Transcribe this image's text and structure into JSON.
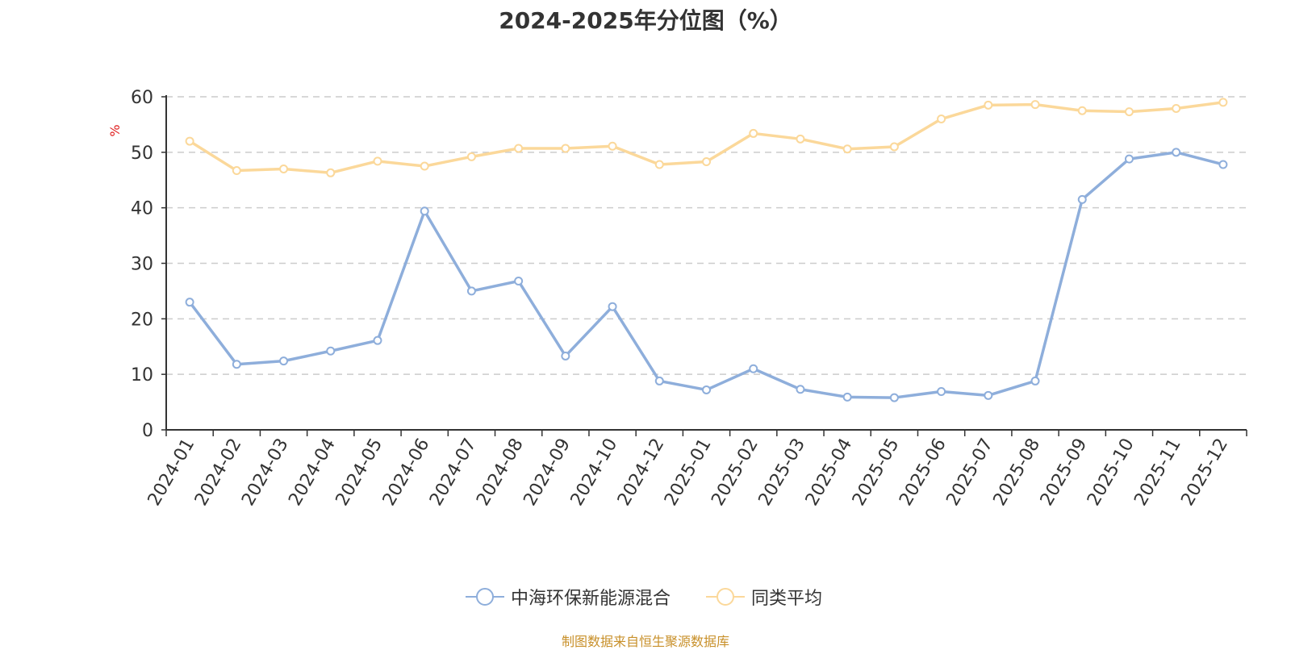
{
  "chart_data": {
    "type": "line",
    "title": "2024-2025年分位图（%）",
    "ylabel": "%",
    "xlabel": "",
    "ylim": [
      0,
      60
    ],
    "yticks": [
      0,
      10,
      20,
      30,
      40,
      50,
      60
    ],
    "grid": true,
    "legend_position": "bottom",
    "categories": [
      "2024-01",
      "2024-02",
      "2024-03",
      "2024-04",
      "2024-05",
      "2024-06",
      "2024-07",
      "2024-08",
      "2024-09",
      "2024-10",
      "2024-12",
      "2025-01",
      "2025-02",
      "2025-03",
      "2025-04",
      "2025-05",
      "2025-06",
      "2025-07",
      "2025-08",
      "2025-09",
      "2025-10",
      "2025-11",
      "2025-12"
    ],
    "series": [
      {
        "name": "中海环保新能源混合",
        "color": "#8eaedb",
        "values": [
          23.0,
          11.8,
          12.4,
          14.2,
          16.1,
          39.4,
          25.0,
          26.8,
          13.3,
          22.2,
          8.8,
          7.2,
          11.0,
          7.3,
          5.9,
          5.8,
          6.9,
          6.2,
          8.8,
          41.5,
          48.8,
          50.0,
          47.8
        ]
      },
      {
        "name": "同类平均",
        "color": "#fbd89a",
        "values": [
          52.0,
          46.7,
          47.0,
          46.3,
          48.4,
          47.5,
          49.2,
          50.7,
          50.7,
          51.1,
          47.8,
          48.3,
          53.4,
          52.4,
          50.6,
          51.0,
          56.0,
          58.5,
          58.6,
          57.5,
          57.3,
          57.9,
          59.0
        ]
      }
    ]
  },
  "source_note": "制图数据来自恒生聚源数据库"
}
